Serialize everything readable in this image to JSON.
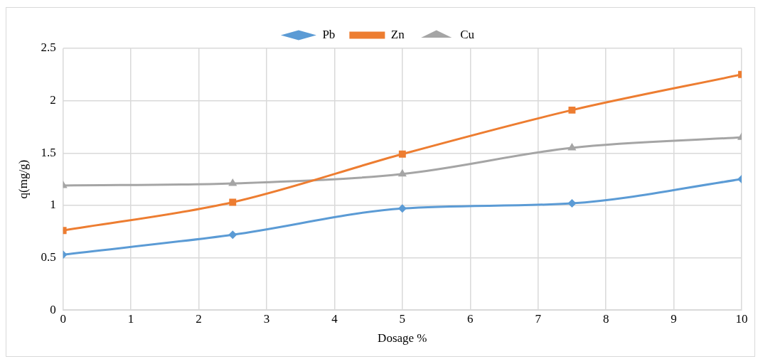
{
  "chart_data": {
    "type": "line",
    "xlabel": "Dosage %",
    "ylabel": "q(mg/g)",
    "x": [
      0,
      2.5,
      5,
      7.5,
      10
    ],
    "series": [
      {
        "name": "Pb",
        "color": "#5b9bd5",
        "marker": "diamond",
        "values": [
          0.53,
          0.72,
          0.97,
          1.02,
          1.25
        ]
      },
      {
        "name": "Zn",
        "color": "#ed7d31",
        "marker": "square",
        "values": [
          0.76,
          1.03,
          1.49,
          1.91,
          2.25
        ]
      },
      {
        "name": "Cu",
        "color": "#a5a5a5",
        "marker": "triangle",
        "values": [
          1.19,
          1.21,
          1.3,
          1.55,
          1.65
        ]
      }
    ],
    "xlim": [
      0,
      10
    ],
    "xticks": [
      0,
      1,
      2,
      3,
      4,
      5,
      6,
      7,
      8,
      9,
      10
    ],
    "ylim": [
      0,
      2.5
    ],
    "yticks": [
      0,
      0.5,
      1,
      1.5,
      2,
      2.5
    ],
    "grid": true,
    "legend": "top",
    "line_style": "solid"
  }
}
